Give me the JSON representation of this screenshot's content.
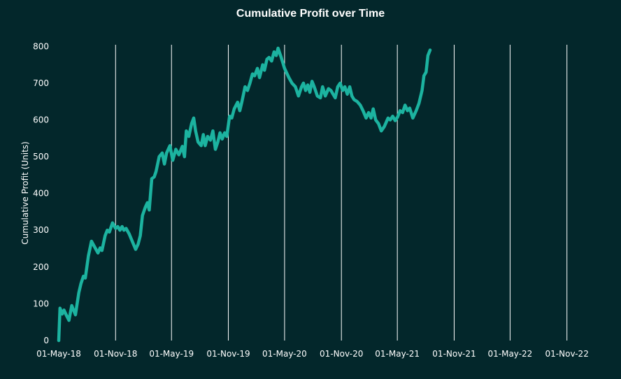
{
  "chart_data": {
    "type": "line",
    "title": "Cumulative Profit over Time",
    "xlabel": "",
    "ylabel": "Cumulative Profit (Units)",
    "x_ticks": [
      "01-May-18",
      "01-Nov-18",
      "01-May-19",
      "01-Nov-19",
      "01-May-20",
      "01-Nov-20",
      "01-May-21",
      "01-Nov-21",
      "01-May-22",
      "01-Nov-22"
    ],
    "y_ticks": [
      0,
      100,
      200,
      300,
      400,
      500,
      600,
      700,
      800
    ],
    "xlim": [
      "2018-05-01",
      "2023-04-25"
    ],
    "ylim": [
      0,
      850
    ],
    "grid": "vertical",
    "colors": {
      "background": "#03272b",
      "line": "#1cb3a0",
      "grid": "#ffffff",
      "text": "#ffffff"
    },
    "series": [
      {
        "points": [
          [
            "2018-05-01",
            0
          ],
          [
            "2018-05-05",
            88
          ],
          [
            "2018-05-12",
            72
          ],
          [
            "2018-05-18",
            83
          ],
          [
            "2018-05-25",
            70
          ],
          [
            "2018-06-03",
            55
          ],
          [
            "2018-06-12",
            95
          ],
          [
            "2018-06-24",
            70
          ],
          [
            "2018-07-05",
            130
          ],
          [
            "2018-07-12",
            155
          ],
          [
            "2018-07-20",
            175
          ],
          [
            "2018-07-26",
            170
          ],
          [
            "2018-08-05",
            230
          ],
          [
            "2018-08-15",
            270
          ],
          [
            "2018-08-28",
            250
          ],
          [
            "2018-09-05",
            238
          ],
          [
            "2018-09-12",
            252
          ],
          [
            "2018-09-18",
            245
          ],
          [
            "2018-09-28",
            285
          ],
          [
            "2018-10-05",
            300
          ],
          [
            "2018-10-12",
            295
          ],
          [
            "2018-10-22",
            320
          ],
          [
            "2018-11-01",
            305
          ],
          [
            "2018-11-08",
            310
          ],
          [
            "2018-11-15",
            300
          ],
          [
            "2018-11-22",
            310
          ],
          [
            "2018-11-28",
            300
          ],
          [
            "2018-12-05",
            305
          ],
          [
            "2018-12-15",
            290
          ],
          [
            "2018-12-25",
            270
          ],
          [
            "2019-01-05",
            248
          ],
          [
            "2019-01-13",
            262
          ],
          [
            "2019-01-20",
            285
          ],
          [
            "2019-01-27",
            340
          ],
          [
            "2019-02-05",
            362
          ],
          [
            "2019-02-12",
            375
          ],
          [
            "2019-02-18",
            355
          ],
          [
            "2019-02-26",
            440
          ],
          [
            "2019-03-06",
            445
          ],
          [
            "2019-03-12",
            460
          ],
          [
            "2019-03-22",
            500
          ],
          [
            "2019-04-01",
            510
          ],
          [
            "2019-04-08",
            480
          ],
          [
            "2019-04-15",
            510
          ],
          [
            "2019-04-26",
            530
          ],
          [
            "2019-05-05",
            490
          ],
          [
            "2019-05-15",
            520
          ],
          [
            "2019-05-25",
            505
          ],
          [
            "2019-06-05",
            528
          ],
          [
            "2019-06-12",
            500
          ],
          [
            "2019-06-18",
            570
          ],
          [
            "2019-06-26",
            555
          ],
          [
            "2019-07-05",
            590
          ],
          [
            "2019-07-12",
            605
          ],
          [
            "2019-07-18",
            570
          ],
          [
            "2019-07-26",
            540
          ],
          [
            "2019-08-05",
            530
          ],
          [
            "2019-08-12",
            560
          ],
          [
            "2019-08-18",
            530
          ],
          [
            "2019-08-26",
            555
          ],
          [
            "2019-09-04",
            545
          ],
          [
            "2019-09-12",
            570
          ],
          [
            "2019-09-20",
            520
          ],
          [
            "2019-09-28",
            540
          ],
          [
            "2019-10-05",
            565
          ],
          [
            "2019-10-12",
            548
          ],
          [
            "2019-10-20",
            565
          ],
          [
            "2019-10-27",
            555
          ],
          [
            "2019-11-05",
            610
          ],
          [
            "2019-11-12",
            605
          ],
          [
            "2019-11-20",
            630
          ],
          [
            "2019-12-01",
            648
          ],
          [
            "2019-12-08",
            625
          ],
          [
            "2019-12-15",
            650
          ],
          [
            "2019-12-25",
            690
          ],
          [
            "2020-01-02",
            680
          ],
          [
            "2020-01-10",
            700
          ],
          [
            "2020-01-18",
            725
          ],
          [
            "2020-01-25",
            720
          ],
          [
            "2020-02-03",
            740
          ],
          [
            "2020-02-10",
            715
          ],
          [
            "2020-02-20",
            750
          ],
          [
            "2020-02-26",
            735
          ],
          [
            "2020-03-05",
            765
          ],
          [
            "2020-03-12",
            770
          ],
          [
            "2020-03-20",
            760
          ],
          [
            "2020-03-28",
            785
          ],
          [
            "2020-04-04",
            775
          ],
          [
            "2020-04-10",
            795
          ],
          [
            "2020-04-20",
            770
          ],
          [
            "2020-05-01",
            740
          ],
          [
            "2020-05-15",
            715
          ],
          [
            "2020-05-25",
            700
          ],
          [
            "2020-06-05",
            690
          ],
          [
            "2020-06-15",
            665
          ],
          [
            "2020-06-25",
            690
          ],
          [
            "2020-07-01",
            700
          ],
          [
            "2020-07-08",
            680
          ],
          [
            "2020-07-15",
            695
          ],
          [
            "2020-07-22",
            675
          ],
          [
            "2020-07-29",
            705
          ],
          [
            "2020-08-05",
            690
          ],
          [
            "2020-08-15",
            665
          ],
          [
            "2020-08-25",
            660
          ],
          [
            "2020-09-01",
            690
          ],
          [
            "2020-09-10",
            665
          ],
          [
            "2020-09-20",
            685
          ],
          [
            "2020-09-28",
            680
          ],
          [
            "2020-10-05",
            670
          ],
          [
            "2020-10-12",
            660
          ],
          [
            "2020-10-20",
            690
          ],
          [
            "2020-10-28",
            700
          ],
          [
            "2020-11-05",
            680
          ],
          [
            "2020-11-12",
            690
          ],
          [
            "2020-11-20",
            670
          ],
          [
            "2020-11-28",
            690
          ],
          [
            "2020-12-05",
            665
          ],
          [
            "2020-12-12",
            655
          ],
          [
            "2020-12-22",
            650
          ],
          [
            "2021-01-01",
            640
          ],
          [
            "2021-01-10",
            625
          ],
          [
            "2021-01-20",
            605
          ],
          [
            "2021-01-28",
            620
          ],
          [
            "2021-02-05",
            605
          ],
          [
            "2021-02-12",
            630
          ],
          [
            "2021-02-20",
            600
          ],
          [
            "2021-03-01",
            590
          ],
          [
            "2021-03-10",
            570
          ],
          [
            "2021-03-20",
            582
          ],
          [
            "2021-04-01",
            605
          ],
          [
            "2021-04-08",
            600
          ],
          [
            "2021-04-16",
            610
          ],
          [
            "2021-04-24",
            598
          ],
          [
            "2021-05-02",
            608
          ],
          [
            "2021-05-10",
            625
          ],
          [
            "2021-05-18",
            620
          ],
          [
            "2021-05-26",
            640
          ],
          [
            "2021-06-03",
            625
          ],
          [
            "2021-06-10",
            632
          ],
          [
            "2021-06-20",
            605
          ],
          [
            "2021-07-01",
            625
          ],
          [
            "2021-07-10",
            645
          ],
          [
            "2021-07-20",
            680
          ],
          [
            "2021-07-26",
            720
          ],
          [
            "2021-08-02",
            730
          ],
          [
            "2021-08-08",
            775
          ],
          [
            "2021-08-15",
            790
          ]
        ]
      }
    ]
  }
}
